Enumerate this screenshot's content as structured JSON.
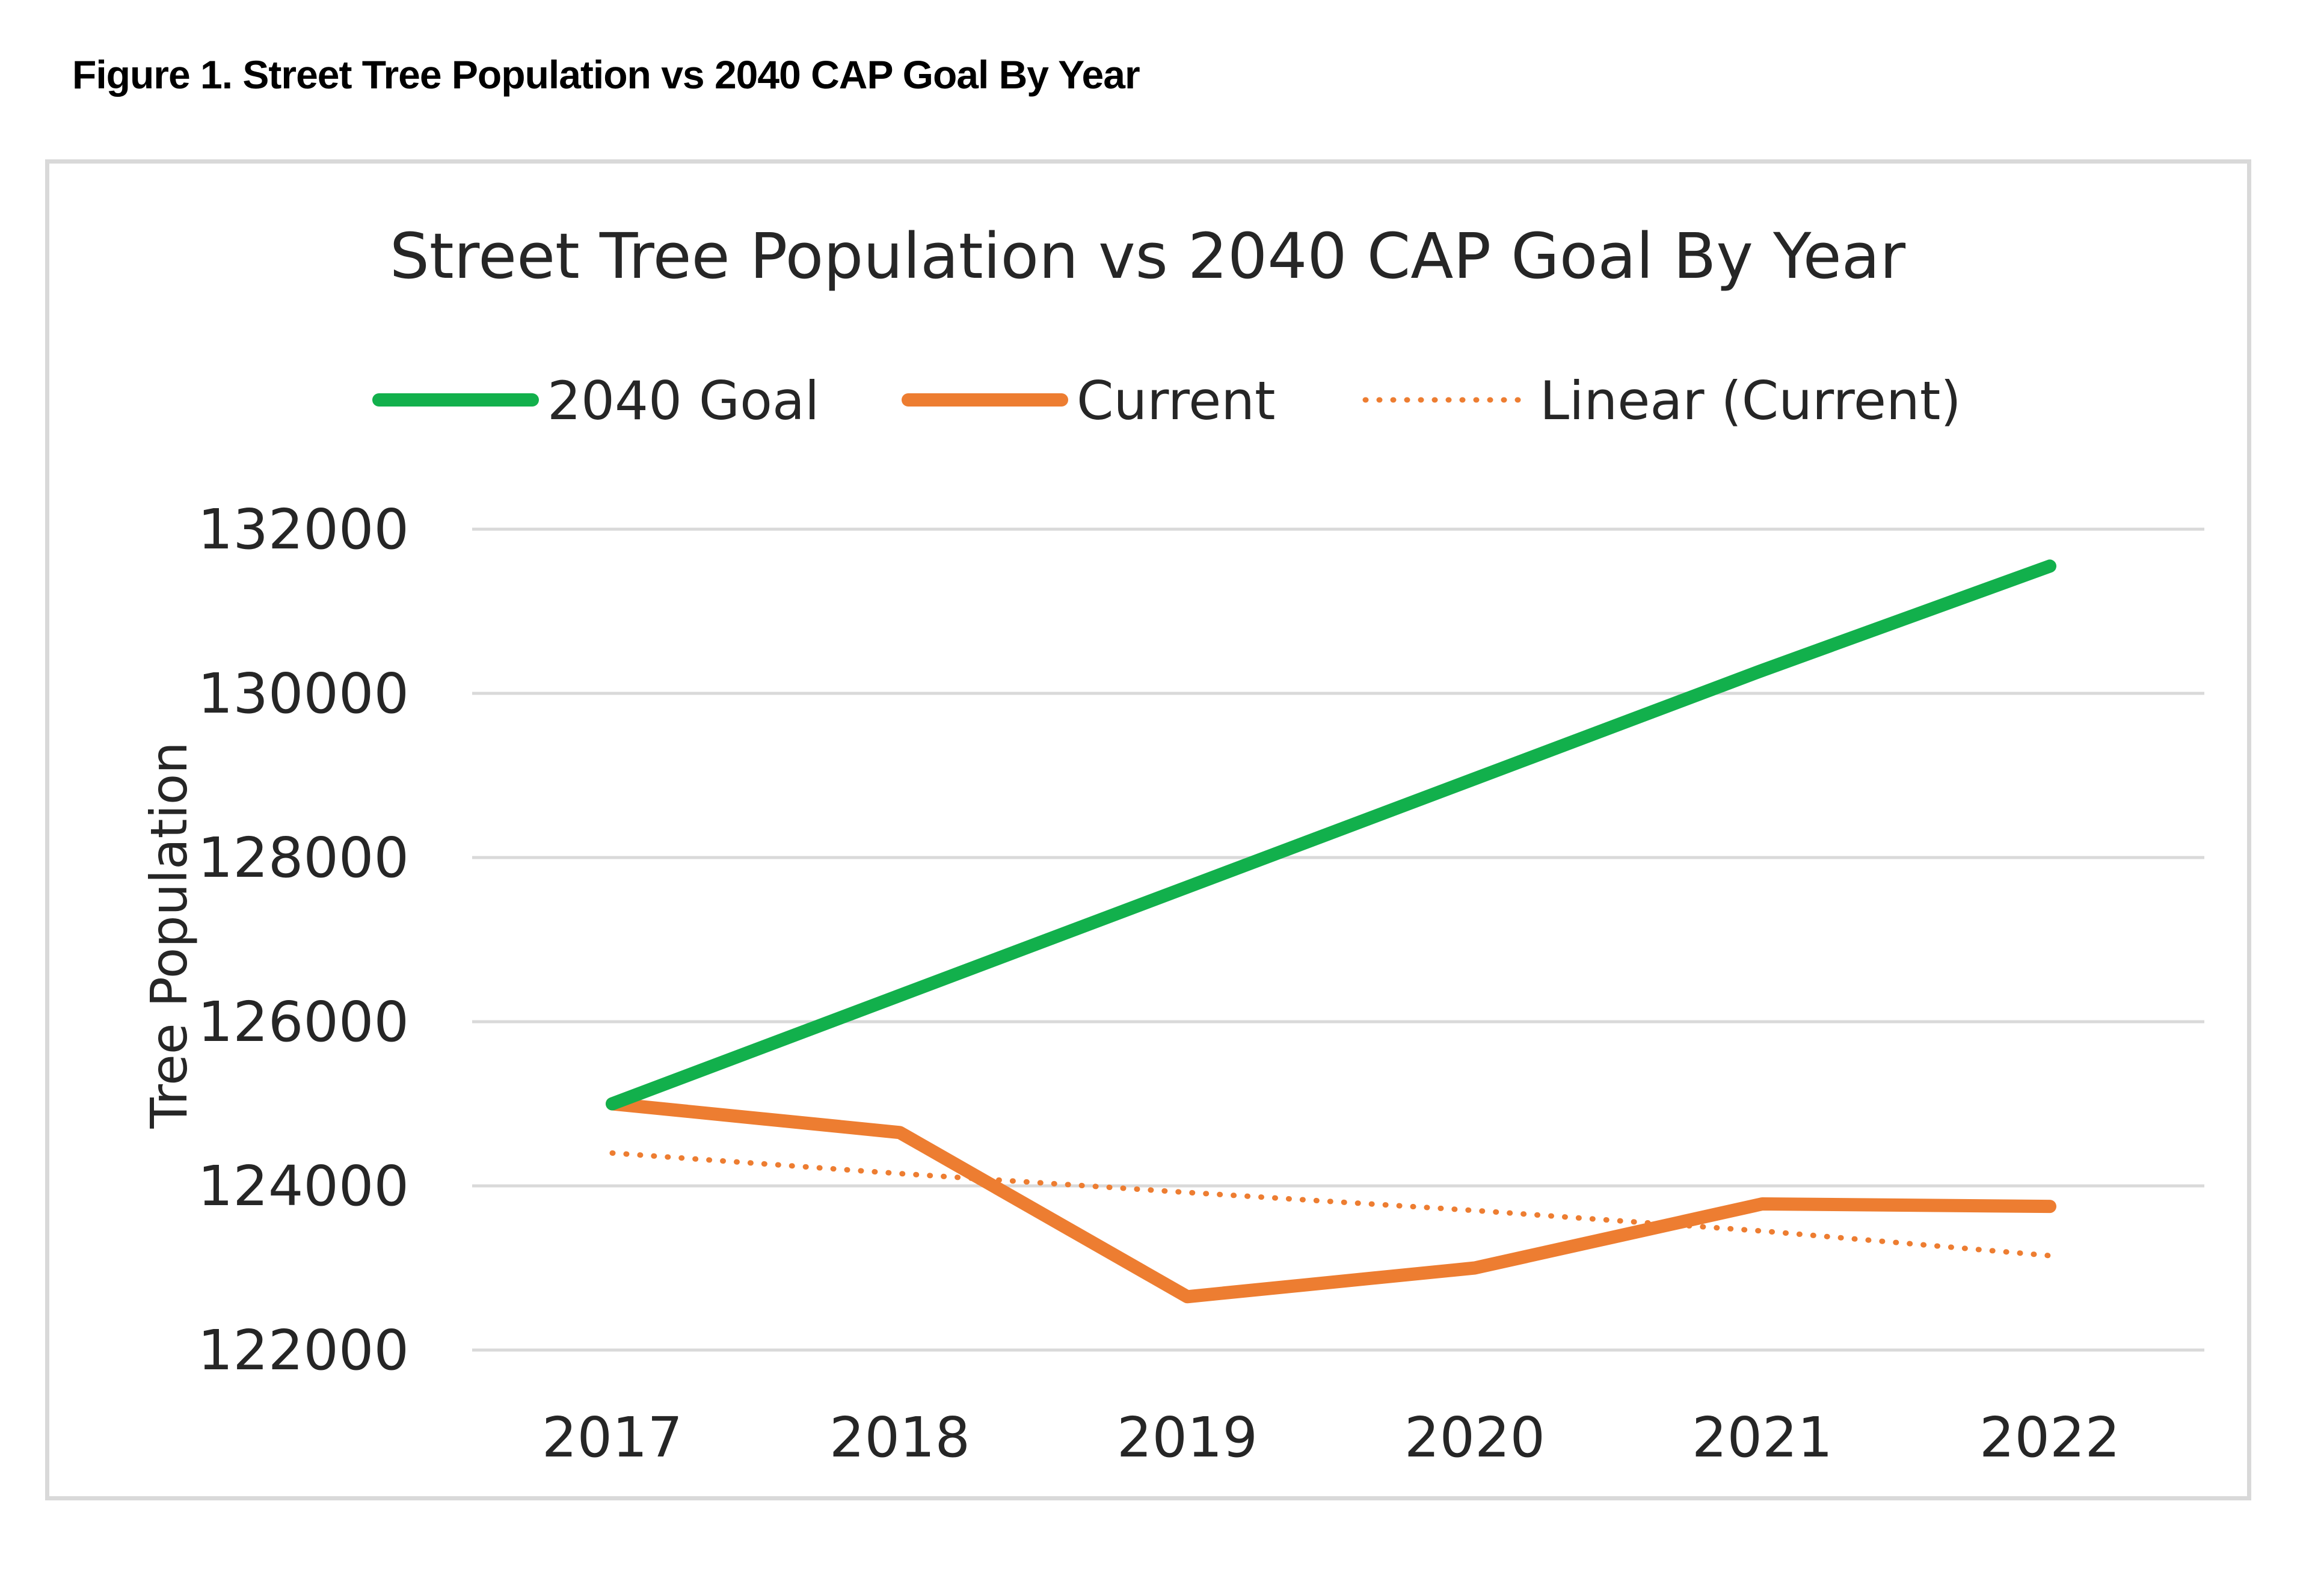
{
  "figure_caption": "Figure 1. Street Tree Population vs 2040 CAP Goal By Year",
  "chart_data": {
    "type": "line",
    "title": "Street Tree Population vs 2040 CAP Goal By Year",
    "xlabel": "",
    "ylabel": "Tree Population",
    "categories": [
      "2017",
      "2018",
      "2019",
      "2020",
      "2021",
      "2022"
    ],
    "ylim": [
      122000,
      132000
    ],
    "yticks": [
      122000,
      124000,
      126000,
      128000,
      130000,
      132000
    ],
    "grid": true,
    "legend_position": "top",
    "series": [
      {
        "name": "2040 Goal",
        "values": [
          125000,
          126320,
          127640,
          128960,
          130280,
          131550
        ],
        "color": "#12b04c",
        "style": "solid"
      },
      {
        "name": "Current",
        "values": [
          125000,
          124650,
          122650,
          123000,
          123780,
          123750
        ],
        "color": "#ed7d31",
        "style": "solid"
      },
      {
        "name": "Linear (Current)",
        "values": [
          124400,
          124150,
          123920,
          123700,
          123450,
          123150
        ],
        "color": "#ed7d31",
        "style": "dotted"
      }
    ]
  }
}
